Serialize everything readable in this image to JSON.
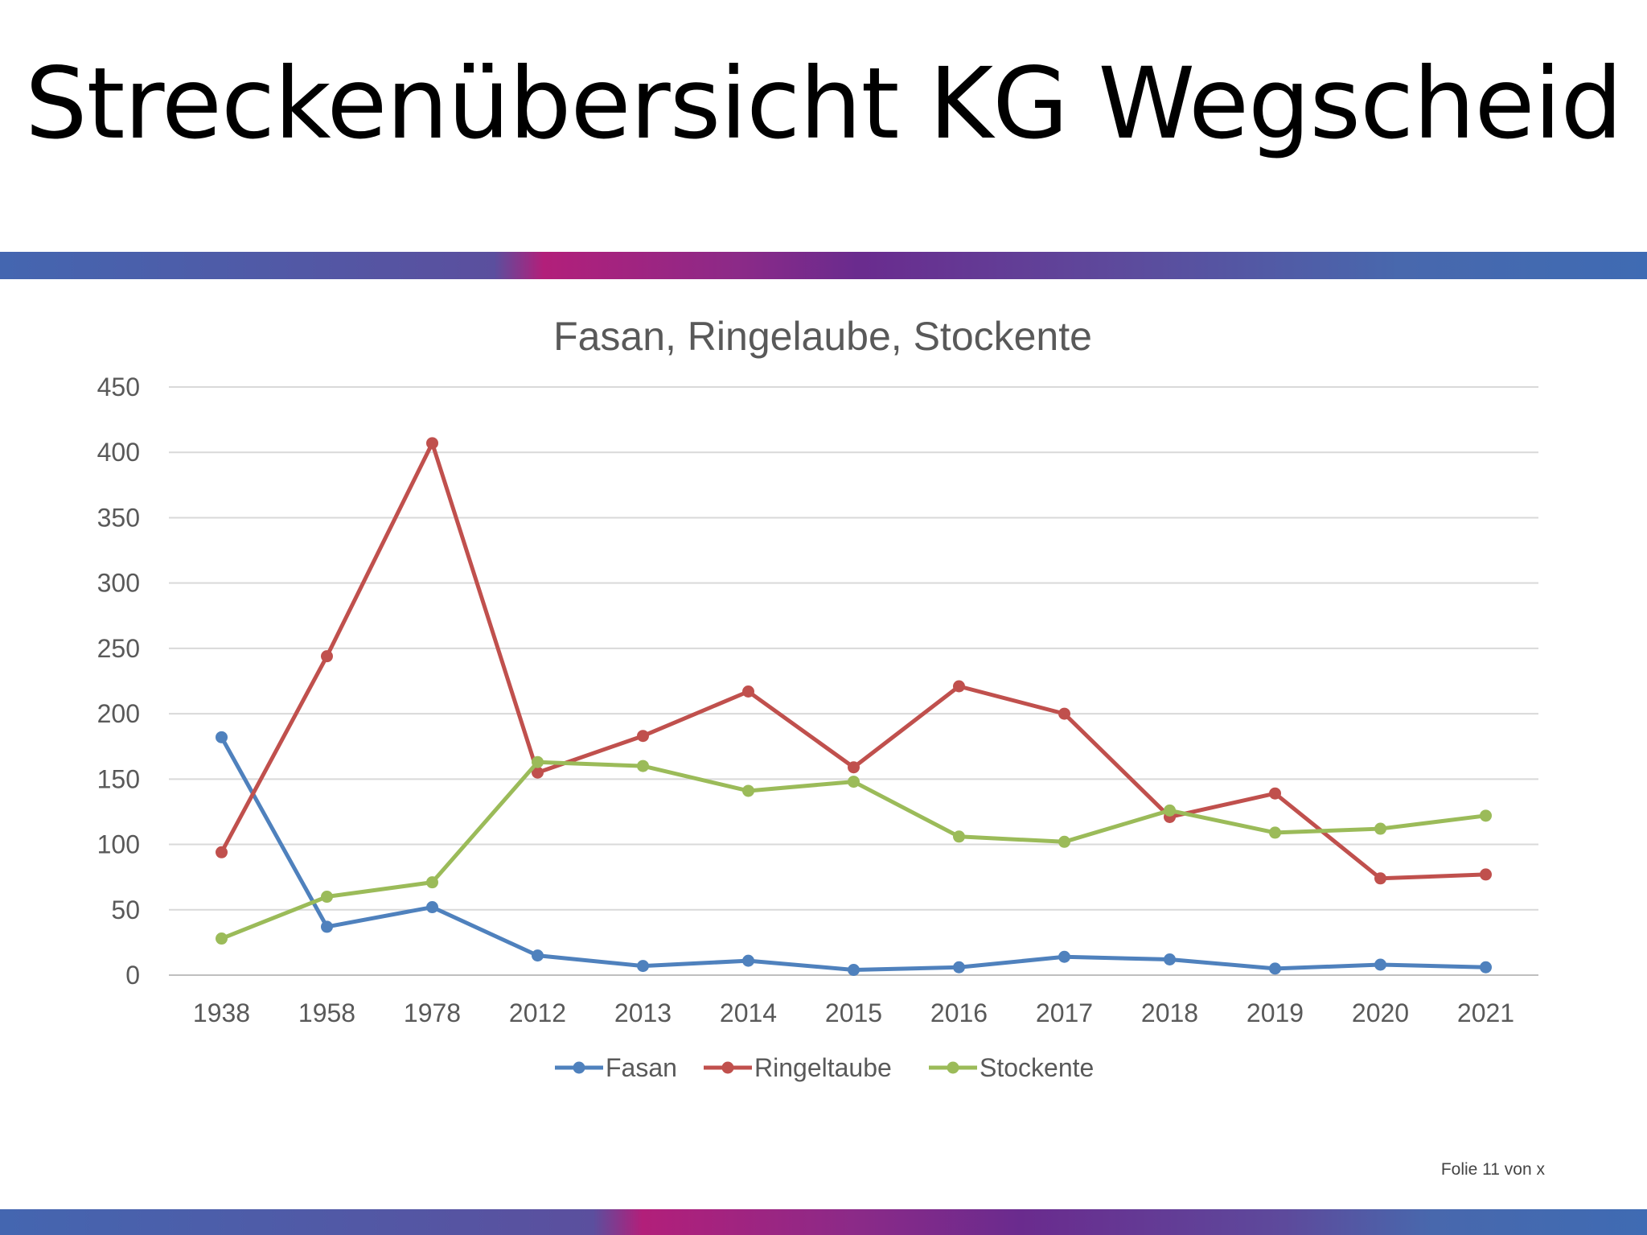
{
  "slide": {
    "title": "Streckenübersicht KG Wegscheid",
    "footer": "Folie 11 von x"
  },
  "chart_data": {
    "type": "line",
    "title": "Fasan, Ringelaube, Stockente",
    "xlabel": "",
    "ylabel": "",
    "categories": [
      "1938",
      "1958",
      "1978",
      "2012",
      "2013",
      "2014",
      "2015",
      "2016",
      "2017",
      "2018",
      "2019",
      "2020",
      "2021"
    ],
    "ylim": [
      0,
      450
    ],
    "yticks": [
      "0",
      "50",
      "100",
      "150",
      "200",
      "250",
      "300",
      "350",
      "400",
      "450"
    ],
    "grid": true,
    "legend": "bottom",
    "series": [
      {
        "name": "Fasan",
        "color": "#4f81bd",
        "values": [
          182,
          37,
          52,
          15,
          7,
          11,
          4,
          6,
          14,
          12,
          5,
          8,
          6
        ]
      },
      {
        "name": "Ringeltaube",
        "color": "#c0504d",
        "values": [
          94,
          244,
          407,
          155,
          183,
          217,
          159,
          221,
          200,
          121,
          139,
          74,
          77
        ]
      },
      {
        "name": "Stockente",
        "color": "#9bbb59",
        "values": [
          28,
          60,
          71,
          163,
          160,
          141,
          148,
          106,
          102,
          126,
          109,
          112,
          122
        ]
      }
    ]
  }
}
